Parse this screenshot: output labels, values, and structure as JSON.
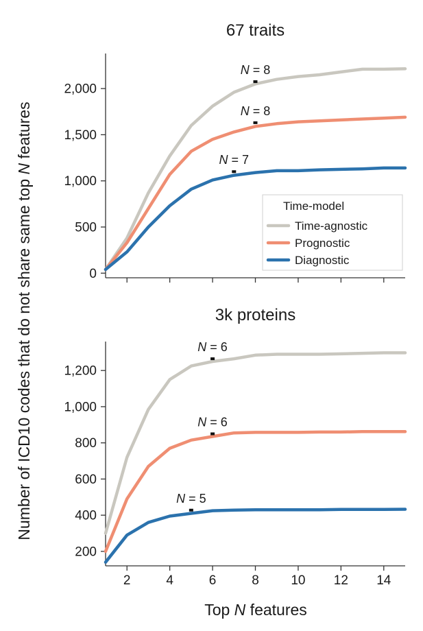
{
  "colors": {
    "time_agnostic": "#c9c7bf",
    "prognostic": "#ef8e72",
    "diagnostic": "#2b72ad"
  },
  "ylabel_parts": [
    "Number of ICD10 codes that do not share same top ",
    "N",
    " features"
  ],
  "xlabel_parts": [
    "Top ",
    "N",
    " features"
  ],
  "legend": {
    "title": "Time-model",
    "entries": [
      "Time-agnostic",
      "Prognostic",
      "Diagnostic"
    ]
  },
  "chart_data": [
    {
      "type": "line",
      "title": "67 traits",
      "xlim": [
        1,
        15
      ],
      "ylim": [
        -50,
        2380
      ],
      "yticks": [
        0,
        500,
        1000,
        1500,
        2000
      ],
      "ytick_labels": [
        "0",
        "500",
        "1,000",
        "1,500",
        "2,000"
      ],
      "xticks": [
        2,
        4,
        6,
        8,
        10,
        12,
        14
      ],
      "xtick_labels": [
        "",
        "",
        "",
        "",
        "",
        "",
        ""
      ],
      "x": [
        1,
        2,
        3,
        4,
        5,
        6,
        7,
        8,
        9,
        10,
        11,
        12,
        13,
        14,
        15
      ],
      "series": [
        {
          "name": "Time-agnostic",
          "color_key": "time_agnostic",
          "values": [
            40,
            380,
            870,
            1270,
            1600,
            1810,
            1960,
            2050,
            2100,
            2130,
            2150,
            2180,
            2210,
            2210,
            2215
          ]
        },
        {
          "name": "Prognostic",
          "color_key": "prognostic",
          "values": [
            40,
            330,
            700,
            1070,
            1320,
            1450,
            1530,
            1590,
            1620,
            1640,
            1650,
            1660,
            1670,
            1680,
            1690
          ]
        },
        {
          "name": "Diagnostic",
          "color_key": "diagnostic",
          "values": [
            40,
            230,
            500,
            730,
            910,
            1010,
            1060,
            1090,
            1110,
            1110,
            1120,
            1125,
            1130,
            1140,
            1140
          ]
        }
      ],
      "annotations": [
        {
          "prefix": "N",
          "text": " = 8",
          "x": 8,
          "y": 2075
        },
        {
          "prefix": "N",
          "text": " = 8",
          "x": 8,
          "y": 1630
        },
        {
          "prefix": "N",
          "text": " = 7",
          "x": 7,
          "y": 1100
        }
      ],
      "legend_shown": true
    },
    {
      "type": "line",
      "title": "3k proteins",
      "xlim": [
        1,
        15
      ],
      "ylim": [
        120,
        1360
      ],
      "yticks": [
        200,
        400,
        600,
        800,
        1000,
        1200
      ],
      "ytick_labels": [
        "200",
        "400",
        "600",
        "800",
        "1,000",
        "1,200"
      ],
      "xticks": [
        2,
        4,
        6,
        8,
        10,
        12,
        14
      ],
      "xtick_labels": [
        "2",
        "4",
        "6",
        "8",
        "10",
        "12",
        "14"
      ],
      "x": [
        1,
        2,
        3,
        4,
        5,
        6,
        7,
        8,
        9,
        10,
        11,
        12,
        13,
        14,
        15
      ],
      "series": [
        {
          "name": "Time-agnostic",
          "color_key": "time_agnostic",
          "values": [
            300,
            720,
            985,
            1150,
            1225,
            1250,
            1265,
            1285,
            1290,
            1290,
            1290,
            1292,
            1295,
            1298,
            1298
          ]
        },
        {
          "name": "Prognostic",
          "color_key": "prognostic",
          "values": [
            200,
            490,
            670,
            770,
            815,
            835,
            855,
            858,
            858,
            858,
            860,
            860,
            862,
            862,
            862
          ]
        },
        {
          "name": "Diagnostic",
          "color_key": "diagnostic",
          "values": [
            140,
            290,
            360,
            395,
            410,
            425,
            428,
            430,
            430,
            430,
            430,
            432,
            432,
            432,
            433
          ]
        }
      ],
      "annotations": [
        {
          "prefix": "N",
          "text": " = 6",
          "x": 6,
          "y": 1265
        },
        {
          "prefix": "N",
          "text": " = 6",
          "x": 6,
          "y": 850
        },
        {
          "prefix": "N",
          "text": " = 5",
          "x": 5,
          "y": 428
        }
      ],
      "legend_shown": false
    }
  ]
}
